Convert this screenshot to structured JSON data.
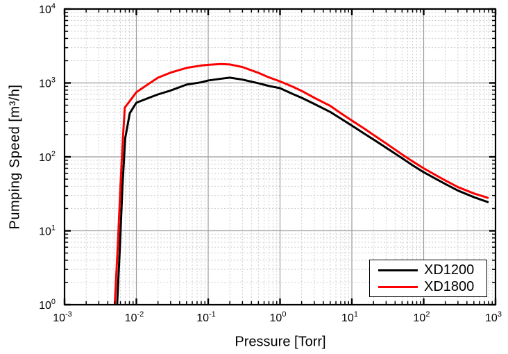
{
  "chart_data": {
    "type": "line",
    "title": "",
    "xlabel": "Pressure [Torr]",
    "ylabel": "Pumping Speed [m³/h]",
    "x_scale": "log",
    "y_scale": "log",
    "x_range_exponents": [
      -3,
      3
    ],
    "y_range_exponents": [
      0,
      4
    ],
    "grid": {
      "major": true,
      "minor": true,
      "major_color": "#9b9b9b",
      "minor_color": "#cccccc"
    },
    "frame_color": "#000000",
    "legend_position": "bottom-right",
    "series": [
      {
        "name": "XD1200",
        "color": "#000000",
        "points": [
          [
            0.0054,
            1
          ],
          [
            0.0059,
            6
          ],
          [
            0.0064,
            40
          ],
          [
            0.007,
            180
          ],
          [
            0.0081,
            390
          ],
          [
            0.009,
            460
          ],
          [
            0.01,
            540
          ],
          [
            0.015,
            630
          ],
          [
            0.02,
            700
          ],
          [
            0.03,
            790
          ],
          [
            0.05,
            950
          ],
          [
            0.08,
            1020
          ],
          [
            0.1,
            1080
          ],
          [
            0.15,
            1140
          ],
          [
            0.2,
            1180
          ],
          [
            0.3,
            1110
          ],
          [
            0.5,
            990
          ],
          [
            0.7,
            910
          ],
          [
            1,
            850
          ],
          [
            1.5,
            710
          ],
          [
            2,
            630
          ],
          [
            3,
            520
          ],
          [
            5,
            405
          ],
          [
            7,
            330
          ],
          [
            10,
            265
          ],
          [
            15,
            205
          ],
          [
            20,
            172
          ],
          [
            30,
            133
          ],
          [
            50,
            96
          ],
          [
            70,
            77
          ],
          [
            100,
            62
          ],
          [
            150,
            50
          ],
          [
            200,
            43
          ],
          [
            300,
            35
          ],
          [
            500,
            28.5
          ],
          [
            780,
            24.5
          ]
        ]
      },
      {
        "name": "XD1800",
        "color": "#fb0000",
        "points": [
          [
            0.005,
            1
          ],
          [
            0.0055,
            6
          ],
          [
            0.006,
            40
          ],
          [
            0.0065,
            180
          ],
          [
            0.0069,
            465
          ],
          [
            0.008,
            560
          ],
          [
            0.01,
            750
          ],
          [
            0.015,
            980
          ],
          [
            0.02,
            1180
          ],
          [
            0.03,
            1380
          ],
          [
            0.05,
            1600
          ],
          [
            0.08,
            1720
          ],
          [
            0.1,
            1760
          ],
          [
            0.15,
            1800
          ],
          [
            0.2,
            1780
          ],
          [
            0.3,
            1640
          ],
          [
            0.5,
            1370
          ],
          [
            0.7,
            1190
          ],
          [
            1,
            1050
          ],
          [
            1.5,
            890
          ],
          [
            2,
            780
          ],
          [
            3,
            630
          ],
          [
            5,
            490
          ],
          [
            7,
            390
          ],
          [
            10,
            310
          ],
          [
            15,
            240
          ],
          [
            20,
            198
          ],
          [
            30,
            152
          ],
          [
            50,
            108
          ],
          [
            70,
            87
          ],
          [
            100,
            70
          ],
          [
            150,
            56
          ],
          [
            200,
            48
          ],
          [
            300,
            39
          ],
          [
            500,
            32
          ],
          [
            780,
            28
          ]
        ]
      }
    ]
  }
}
